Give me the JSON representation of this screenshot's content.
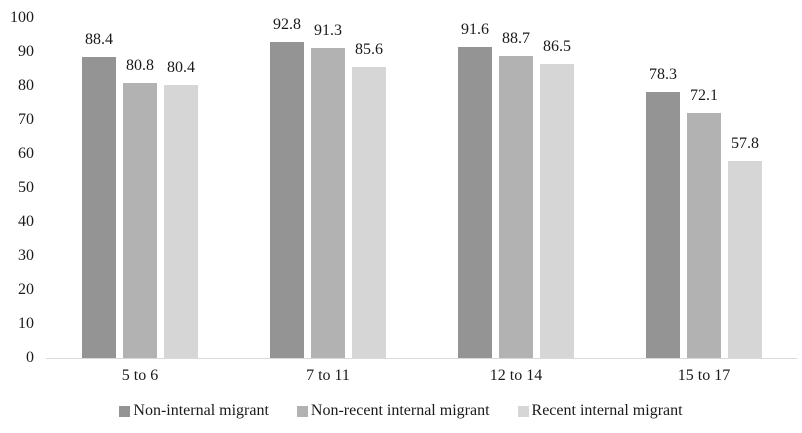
{
  "chart_data": {
    "type": "bar",
    "title": "",
    "xlabel": "",
    "ylabel": "",
    "categories": [
      "5 to 6",
      "7 to 11",
      "12 to 14",
      "15 to 17"
    ],
    "series": [
      {
        "name": "Non-internal migrant",
        "color": "#949494",
        "values": [
          88.4,
          92.8,
          91.6,
          78.3
        ]
      },
      {
        "name": "Non-recent internal migrant",
        "color": "#b2b2b2",
        "values": [
          80.8,
          91.3,
          88.7,
          72.1
        ]
      },
      {
        "name": "Recent internal migrant",
        "color": "#d6d6d6",
        "values": [
          80.4,
          85.6,
          86.5,
          57.8
        ]
      }
    ],
    "ylim": [
      0,
      100
    ],
    "yticks": [
      0,
      10,
      20,
      30,
      40,
      50,
      60,
      70,
      80,
      90,
      100
    ],
    "grid": false,
    "value_labels": true,
    "legend_position": "bottom",
    "axis_line_color": "#d9d9d9",
    "text_color": "#1a1a1a",
    "background_color": "#ffffff"
  }
}
